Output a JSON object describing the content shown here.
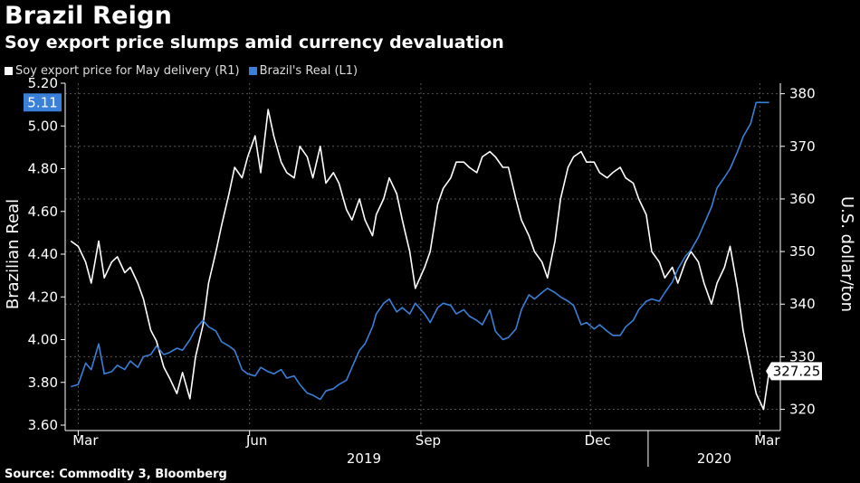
{
  "header": {
    "title": "Brazil Reign",
    "subtitle": "Soy export price slumps amid currency devaluation"
  },
  "legend": {
    "items": [
      {
        "label": "Soy export price for May delivery (R1)",
        "color": "#ffffff"
      },
      {
        "label": "Brazil's Real (L1)",
        "color": "#3a7fd8"
      }
    ]
  },
  "source": "Source: Commodity 3, Bloomberg",
  "chart_data": {
    "type": "line",
    "title": "Brazil Reign",
    "subtitle": "Soy export price slumps amid currency devaluation",
    "xlabel": "",
    "ylabel_left": "Brazilian Real",
    "ylabel_right": "U.S. dollar/ton",
    "x_ticks": [
      "Mar",
      "Jun",
      "Sep",
      "Dec",
      "Mar"
    ],
    "x_years": [
      "2019",
      "2020"
    ],
    "y_left_ticks": [
      "3.60",
      "3.80",
      "4.00",
      "4.20",
      "4.40",
      "4.60",
      "4.80",
      "5.00",
      "5.20"
    ],
    "y_right_ticks": [
      "320",
      "330",
      "340",
      "350",
      "360",
      "370",
      "380"
    ],
    "ylim_left": [
      3.6,
      5.2
    ],
    "ylim_right": [
      317,
      382
    ],
    "grid": true,
    "legend_position": "top-left",
    "last_value_labels": {
      "left": "5.11",
      "right": "327.25"
    },
    "series": [
      {
        "name": "Soy export price for May delivery (R1)",
        "axis": "right",
        "color": "#ffffff",
        "x": [
          "2019-02-25",
          "2019-03-01",
          "2019-03-05",
          "2019-03-08",
          "2019-03-12",
          "2019-03-15",
          "2019-03-19",
          "2019-03-22",
          "2019-03-26",
          "2019-03-29",
          "2019-04-02",
          "2019-04-05",
          "2019-04-09",
          "2019-04-12",
          "2019-04-16",
          "2019-04-19",
          "2019-04-23",
          "2019-04-26",
          "2019-04-30",
          "2019-05-03",
          "2019-05-07",
          "2019-05-10",
          "2019-05-14",
          "2019-05-17",
          "2019-05-21",
          "2019-05-24",
          "2019-05-28",
          "2019-05-31",
          "2019-06-04",
          "2019-06-07",
          "2019-06-11",
          "2019-06-14",
          "2019-06-18",
          "2019-06-21",
          "2019-06-25",
          "2019-06-28",
          "2019-07-02",
          "2019-07-05",
          "2019-07-09",
          "2019-07-12",
          "2019-07-16",
          "2019-07-19",
          "2019-07-23",
          "2019-07-26",
          "2019-07-30",
          "2019-08-02",
          "2019-08-06",
          "2019-08-08",
          "2019-08-12",
          "2019-08-15",
          "2019-08-19",
          "2019-08-22",
          "2019-08-26",
          "2019-08-29",
          "2019-09-03",
          "2019-09-06",
          "2019-09-10",
          "2019-09-13",
          "2019-09-17",
          "2019-09-20",
          "2019-09-24",
          "2019-09-27",
          "2019-10-01",
          "2019-10-04",
          "2019-10-08",
          "2019-10-11",
          "2019-10-15",
          "2019-10-18",
          "2019-10-22",
          "2019-10-25",
          "2019-10-29",
          "2019-11-01",
          "2019-11-05",
          "2019-11-08",
          "2019-11-12",
          "2019-11-15",
          "2019-11-19",
          "2019-11-22",
          "2019-11-26",
          "2019-11-29",
          "2019-12-03",
          "2019-12-06",
          "2019-12-10",
          "2019-12-13",
          "2019-12-17",
          "2019-12-20",
          "2019-12-24",
          "2019-12-27",
          "2019-12-31",
          "2020-01-03",
          "2020-01-07",
          "2020-01-10",
          "2020-01-14",
          "2020-01-17",
          "2020-01-21",
          "2020-01-24",
          "2020-01-28",
          "2020-01-31",
          "2020-02-04",
          "2020-02-07",
          "2020-02-11",
          "2020-02-14",
          "2020-02-18",
          "2020-02-21",
          "2020-02-25",
          "2020-02-28",
          "2020-03-03",
          "2020-03-06"
        ],
        "values": [
          352,
          351,
          348,
          344,
          352,
          345,
          348,
          349,
          346,
          347,
          344,
          341,
          335,
          333,
          328,
          326,
          323,
          327,
          322,
          330,
          336,
          344,
          350,
          355,
          361,
          366,
          364,
          368,
          372,
          365,
          377,
          372,
          367,
          365,
          364,
          370,
          368,
          364,
          370,
          363,
          365,
          363,
          358,
          356,
          360,
          356,
          353,
          357,
          360,
          364,
          361,
          356,
          350,
          343,
          347,
          350,
          359,
          362,
          364,
          367,
          367,
          366,
          365,
          368,
          369,
          368,
          366,
          366,
          360,
          356,
          353,
          350,
          348,
          345,
          352,
          360,
          366,
          368,
          369,
          367,
          367,
          365,
          364,
          365,
          366,
          364,
          363,
          360,
          357,
          350,
          348,
          345,
          347,
          344,
          348,
          350,
          348,
          344,
          340,
          344,
          347,
          351,
          343,
          335,
          328,
          323,
          320,
          327.25
        ]
      },
      {
        "name": "Brazil's Real (L1)",
        "axis": "left",
        "color": "#3a7fd8",
        "x": [
          "2019-02-25",
          "2019-03-01",
          "2019-03-05",
          "2019-03-08",
          "2019-03-12",
          "2019-03-15",
          "2019-03-19",
          "2019-03-22",
          "2019-03-26",
          "2019-03-29",
          "2019-04-02",
          "2019-04-05",
          "2019-04-09",
          "2019-04-12",
          "2019-04-16",
          "2019-04-19",
          "2019-04-23",
          "2019-04-26",
          "2019-04-30",
          "2019-05-03",
          "2019-05-07",
          "2019-05-10",
          "2019-05-14",
          "2019-05-17",
          "2019-05-21",
          "2019-05-24",
          "2019-05-28",
          "2019-05-31",
          "2019-06-04",
          "2019-06-07",
          "2019-06-11",
          "2019-06-14",
          "2019-06-18",
          "2019-06-21",
          "2019-06-25",
          "2019-06-28",
          "2019-07-02",
          "2019-07-05",
          "2019-07-09",
          "2019-07-12",
          "2019-07-16",
          "2019-07-19",
          "2019-07-23",
          "2019-07-26",
          "2019-07-30",
          "2019-08-02",
          "2019-08-06",
          "2019-08-08",
          "2019-08-12",
          "2019-08-15",
          "2019-08-19",
          "2019-08-22",
          "2019-08-26",
          "2019-08-29",
          "2019-09-03",
          "2019-09-06",
          "2019-09-10",
          "2019-09-13",
          "2019-09-17",
          "2019-09-20",
          "2019-09-24",
          "2019-09-27",
          "2019-10-01",
          "2019-10-04",
          "2019-10-08",
          "2019-10-11",
          "2019-10-15",
          "2019-10-18",
          "2019-10-22",
          "2019-10-25",
          "2019-10-29",
          "2019-11-01",
          "2019-11-05",
          "2019-11-08",
          "2019-11-12",
          "2019-11-15",
          "2019-11-19",
          "2019-11-22",
          "2019-11-26",
          "2019-11-29",
          "2019-12-03",
          "2019-12-06",
          "2019-12-10",
          "2019-12-13",
          "2019-12-17",
          "2019-12-20",
          "2019-12-24",
          "2019-12-27",
          "2019-12-31",
          "2020-01-03",
          "2020-01-07",
          "2020-01-10",
          "2020-01-14",
          "2020-01-17",
          "2020-01-21",
          "2020-01-24",
          "2020-01-28",
          "2020-01-31",
          "2020-02-04",
          "2020-02-07",
          "2020-02-11",
          "2020-02-14",
          "2020-02-18",
          "2020-02-21",
          "2020-02-25",
          "2020-02-28",
          "2020-03-03",
          "2020-03-06"
        ],
        "values": [
          3.78,
          3.79,
          3.89,
          3.86,
          3.98,
          3.84,
          3.85,
          3.88,
          3.86,
          3.9,
          3.87,
          3.92,
          3.93,
          3.97,
          3.93,
          3.94,
          3.96,
          3.95,
          4.0,
          4.05,
          4.09,
          4.06,
          4.04,
          3.99,
          3.97,
          3.95,
          3.86,
          3.84,
          3.83,
          3.87,
          3.85,
          3.84,
          3.86,
          3.82,
          3.83,
          3.79,
          3.75,
          3.74,
          3.72,
          3.76,
          3.77,
          3.79,
          3.81,
          3.87,
          3.95,
          3.98,
          4.06,
          4.12,
          4.17,
          4.19,
          4.13,
          4.15,
          4.12,
          4.17,
          4.12,
          4.08,
          4.15,
          4.17,
          4.16,
          4.12,
          4.14,
          4.11,
          4.09,
          4.07,
          4.14,
          4.04,
          4.0,
          4.01,
          4.05,
          4.14,
          4.21,
          4.19,
          4.22,
          4.24,
          4.22,
          4.2,
          4.18,
          4.16,
          4.07,
          4.08,
          4.05,
          4.07,
          4.04,
          4.02,
          4.02,
          4.06,
          4.09,
          4.14,
          4.18,
          4.19,
          4.18,
          4.22,
          4.27,
          4.33,
          4.39,
          4.42,
          4.48,
          4.54,
          4.62,
          4.71,
          4.76,
          4.8,
          4.88,
          4.95,
          5.01,
          5.11,
          5.11,
          5.11
        ]
      }
    ]
  }
}
